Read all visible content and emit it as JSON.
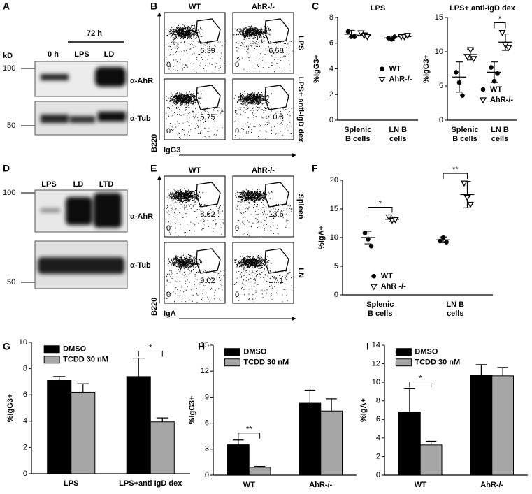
{
  "panels": [
    "A",
    "B",
    "C",
    "D",
    "E",
    "F",
    "G",
    "H",
    "I"
  ],
  "blot_a": {
    "header": "72 h",
    "lanes": [
      "0 h",
      "LPS",
      "LD"
    ],
    "unit": "kD",
    "markers": [
      100,
      50
    ],
    "probes": [
      "α-AhR",
      "α-Tub"
    ]
  },
  "blot_d": {
    "lanes": [
      "LPS",
      "LD",
      "LTD"
    ],
    "markers": [
      100,
      50
    ],
    "probes": [
      "α-AhR",
      "α-Tub"
    ]
  },
  "flow_b": {
    "columns": [
      "WT",
      "AhR-/-"
    ],
    "rows": [
      "LPS",
      "LPS+ anti-IgD dex"
    ],
    "gates": [
      [
        6.39,
        6.58
      ],
      [
        5.75,
        10.8
      ]
    ],
    "y_label": "B220",
    "x_label": "IgG3",
    "axis_zero": 0
  },
  "flow_e": {
    "columns": [
      "WT",
      "AhR-/-"
    ],
    "rows": [
      "Spleen",
      "LN"
    ],
    "gates": [
      [
        8.62,
        13.6
      ],
      [
        9.02,
        17.1
      ]
    ],
    "y_label": "B220",
    "x_label": "IgA",
    "axis_zero": 0
  },
  "chart_data": [
    {
      "type": "dotplot",
      "title": "LPS",
      "ylabel": "%IgG3+",
      "categories": [
        "Splenic B cells",
        "LN B cells"
      ],
      "ylim": [
        0,
        8
      ],
      "yticks": [
        0,
        2,
        4,
        6,
        8
      ],
      "legend": "center right",
      "series": [
        {
          "name": "WT",
          "color": "#000000",
          "marker": "circle",
          "values": [
            [
              6.9,
              6.5,
              6.5
            ],
            [
              6.4,
              6.3,
              6.5
            ]
          ],
          "means": [
            6.7,
            6.4
          ],
          "errors": [
            0.3,
            0.15
          ]
        },
        {
          "name": "AhR-/-",
          "color": "#000000",
          "marker": "triangle",
          "values": [
            [
              6.8,
              6.6,
              6.5
            ],
            [
              6.5,
              6.5,
              6.6
            ]
          ],
          "means": [
            6.6,
            6.5
          ],
          "errors": [
            0.2,
            0.1
          ]
        }
      ],
      "annotations": []
    },
    {
      "type": "dotplot",
      "title": "LPS+ anti-IgD dex",
      "ylabel": "%IgG3+",
      "categories": [
        "Splenic B cells",
        "LN B cells"
      ],
      "ylim": [
        0,
        15
      ],
      "yticks": [
        0,
        5,
        10,
        15
      ],
      "legend": "lower right",
      "series": [
        {
          "name": "WT",
          "color": "#000000",
          "marker": "circle",
          "values": [
            [
              7.0,
              5.5,
              3.6
            ],
            [
              7.7,
              5.7,
              6.8
            ]
          ],
          "means": [
            6.3,
            7.0
          ],
          "errors": [
            2.2,
            1.5
          ]
        },
        {
          "name": "AhR-/-",
          "color": "#000000",
          "marker": "triangle",
          "values": [
            [
              9.3,
              10.3,
              9.0
            ],
            [
              12.8,
              11.0,
              10.6
            ]
          ],
          "means": [
            9.6,
            11.4
          ],
          "errors": [
            0.8,
            1.2
          ]
        }
      ],
      "annotations": [
        {
          "text": "*",
          "category": 1
        }
      ]
    },
    {
      "type": "dotplot",
      "ylabel": "%IgA+",
      "categories": [
        "Splenic B cells",
        "LN B cells"
      ],
      "ylim": [
        0,
        20
      ],
      "yticks": [
        0,
        5,
        10,
        15,
        20
      ],
      "legend": "lower center",
      "series": [
        {
          "name": "WT",
          "color": "#000000",
          "marker": "circle",
          "values": [
            [
              10.8,
              9.7,
              8.5
            ],
            [
              9.4,
              10.0,
              9.2
            ]
          ],
          "means": [
            10.0,
            9.6
          ],
          "errors": [
            1.1,
            0.5
          ]
        },
        {
          "name": "AhR -/-",
          "color": "#000000",
          "marker": "triangle",
          "values": [
            [
              13.6,
              13.0,
              13.1
            ],
            [
              19.5,
              17.0,
              15.8
            ]
          ],
          "means": [
            13.2,
            17.5
          ],
          "errors": [
            0.4,
            2.3
          ]
        }
      ],
      "annotations": [
        {
          "text": "*",
          "category": 0
        },
        {
          "text": "**",
          "category": 1
        }
      ]
    },
    {
      "type": "bar",
      "ylabel": "%IgG3+",
      "categories": [
        "LPS",
        "LPS+anti IgD dex"
      ],
      "ylim": [
        0,
        10
      ],
      "yticks": [
        0,
        2,
        4,
        6,
        8,
        10
      ],
      "legend": "upper left",
      "series": [
        {
          "name": "DMSO",
          "color": "#000000",
          "values": [
            7.1,
            7.4
          ],
          "errors": [
            0.3,
            1.4
          ]
        },
        {
          "name": "TCDD 30 nM",
          "color": "#a6a6a6",
          "values": [
            6.2,
            3.95
          ],
          "errors": [
            0.65,
            0.3
          ]
        }
      ],
      "annotations": [
        {
          "text": "*",
          "category": 1
        }
      ]
    },
    {
      "type": "bar",
      "ylabel": "%IgG3+",
      "categories": [
        "WT",
        "AhR-/-"
      ],
      "ylim": [
        0,
        15
      ],
      "yticks": [
        0,
        3,
        6,
        9,
        12,
        15
      ],
      "legend": "upper left",
      "series": [
        {
          "name": "DMSO",
          "color": "#000000",
          "values": [
            3.5,
            8.3
          ],
          "errors": [
            0.55,
            1.5
          ]
        },
        {
          "name": "TCDD 30 nM",
          "color": "#a6a6a6",
          "values": [
            0.9,
            7.4
          ],
          "errors": [
            0.1,
            1.4
          ]
        }
      ],
      "annotations": [
        {
          "text": "**",
          "category": 0
        }
      ]
    },
    {
      "type": "bar",
      "ylabel": "%IgA+",
      "categories": [
        "WT",
        "AhR-/-"
      ],
      "ylim": [
        0,
        14
      ],
      "yticks": [
        0,
        2,
        4,
        6,
        8,
        10,
        12,
        14
      ],
      "legend": "upper left",
      "series": [
        {
          "name": "DMSO",
          "color": "#000000",
          "values": [
            6.8,
            10.8
          ],
          "errors": [
            2.5,
            1.1
          ]
        },
        {
          "name": "TCDD 30 nM",
          "color": "#a6a6a6",
          "values": [
            3.25,
            10.7
          ],
          "errors": [
            0.4,
            0.9
          ]
        }
      ],
      "annotations": [
        {
          "text": "*",
          "category": 0
        }
      ]
    }
  ]
}
